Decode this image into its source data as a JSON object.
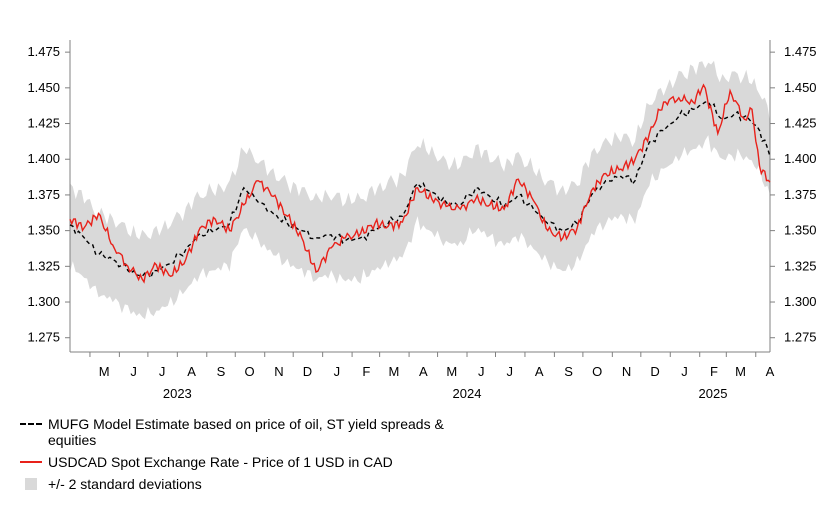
{
  "chart_data": {
    "type": "line",
    "title": "",
    "xlabel": "",
    "ylabel": "",
    "ylim": [
      1.265,
      1.48
    ],
    "y_ticks": [
      "1.475",
      "1.450",
      "1.425",
      "1.400",
      "1.375",
      "1.350",
      "1.325",
      "1.300",
      "1.275"
    ],
    "y_axes": [
      "left",
      "right"
    ],
    "x_range": [
      "2023-04-10",
      "2025-04-16"
    ],
    "month_labels": [
      {
        "label": "M",
        "date": "2023-05-01"
      },
      {
        "label": "J",
        "date": "2023-06-01"
      },
      {
        "label": "J",
        "date": "2023-07-01"
      },
      {
        "label": "A",
        "date": "2023-08-01"
      },
      {
        "label": "S",
        "date": "2023-09-01"
      },
      {
        "label": "O",
        "date": "2023-10-01"
      },
      {
        "label": "N",
        "date": "2023-11-01"
      },
      {
        "label": "D",
        "date": "2023-12-01"
      },
      {
        "label": "J",
        "date": "2024-01-01"
      },
      {
        "label": "F",
        "date": "2024-02-01"
      },
      {
        "label": "M",
        "date": "2024-03-01"
      },
      {
        "label": "A",
        "date": "2024-04-01"
      },
      {
        "label": "M",
        "date": "2024-05-01"
      },
      {
        "label": "J",
        "date": "2024-06-01"
      },
      {
        "label": "J",
        "date": "2024-07-01"
      },
      {
        "label": "A",
        "date": "2024-08-01"
      },
      {
        "label": "S",
        "date": "2024-09-01"
      },
      {
        "label": "O",
        "date": "2024-10-01"
      },
      {
        "label": "N",
        "date": "2024-11-01"
      },
      {
        "label": "D",
        "date": "2024-12-01"
      },
      {
        "label": "J",
        "date": "2025-01-01"
      },
      {
        "label": "F",
        "date": "2025-02-01"
      },
      {
        "label": "M",
        "date": "2025-03-01"
      },
      {
        "label": "A",
        "date": "2025-04-01"
      }
    ],
    "year_labels": [
      {
        "label": "2023",
        "date": "2023-08-01"
      },
      {
        "label": "2024",
        "date": "2024-06-01"
      },
      {
        "label": "2025",
        "date": "2025-02-15"
      }
    ],
    "grid": false,
    "legend_position": "bottom-left",
    "band_halfwidth": 0.028,
    "series": [
      {
        "name": "MUFG Model Estimate based on price of oil, ST yield spreads & equities",
        "style": "dashed",
        "color": "#000000",
        "points": [
          [
            "2023-04-10",
            1.354
          ],
          [
            "2023-04-25",
            1.345
          ],
          [
            "2023-05-10",
            1.333
          ],
          [
            "2023-05-25",
            1.33
          ],
          [
            "2023-06-10",
            1.322
          ],
          [
            "2023-06-25",
            1.318
          ],
          [
            "2023-07-10",
            1.322
          ],
          [
            "2023-07-25",
            1.327
          ],
          [
            "2023-08-10",
            1.337
          ],
          [
            "2023-08-25",
            1.348
          ],
          [
            "2023-09-10",
            1.35
          ],
          [
            "2023-09-25",
            1.355
          ],
          [
            "2023-10-10",
            1.38
          ],
          [
            "2023-10-25",
            1.37
          ],
          [
            "2023-11-10",
            1.362
          ],
          [
            "2023-11-25",
            1.355
          ],
          [
            "2023-12-10",
            1.35
          ],
          [
            "2023-12-25",
            1.345
          ],
          [
            "2024-01-10",
            1.347
          ],
          [
            "2024-01-25",
            1.343
          ],
          [
            "2024-02-10",
            1.345
          ],
          [
            "2024-02-25",
            1.35
          ],
          [
            "2024-03-10",
            1.355
          ],
          [
            "2024-03-25",
            1.36
          ],
          [
            "2024-04-10",
            1.383
          ],
          [
            "2024-04-25",
            1.377
          ],
          [
            "2024-05-10",
            1.37
          ],
          [
            "2024-05-25",
            1.368
          ],
          [
            "2024-06-10",
            1.38
          ],
          [
            "2024-06-25",
            1.374
          ],
          [
            "2024-07-10",
            1.367
          ],
          [
            "2024-07-25",
            1.375
          ],
          [
            "2024-08-10",
            1.365
          ],
          [
            "2024-08-25",
            1.355
          ],
          [
            "2024-09-10",
            1.35
          ],
          [
            "2024-09-25",
            1.355
          ],
          [
            "2024-10-10",
            1.375
          ],
          [
            "2024-10-25",
            1.385
          ],
          [
            "2024-11-10",
            1.388
          ],
          [
            "2024-11-25",
            1.385
          ],
          [
            "2024-12-10",
            1.412
          ],
          [
            "2024-12-25",
            1.42
          ],
          [
            "2025-01-10",
            1.43
          ],
          [
            "2025-01-25",
            1.435
          ],
          [
            "2025-02-10",
            1.44
          ],
          [
            "2025-02-25",
            1.428
          ],
          [
            "2025-03-10",
            1.432
          ],
          [
            "2025-03-25",
            1.428
          ],
          [
            "2025-04-05",
            1.42
          ],
          [
            "2025-04-16",
            1.402
          ]
        ]
      },
      {
        "name": "USDCAD Spot Exchange Rate - Price of 1 USD in CAD",
        "style": "solid",
        "color": "#e8211a",
        "points": [
          [
            "2023-04-10",
            1.358
          ],
          [
            "2023-04-25",
            1.352
          ],
          [
            "2023-05-10",
            1.362
          ],
          [
            "2023-05-25",
            1.34
          ],
          [
            "2023-06-10",
            1.325
          ],
          [
            "2023-06-25",
            1.316
          ],
          [
            "2023-07-10",
            1.326
          ],
          [
            "2023-07-25",
            1.318
          ],
          [
            "2023-08-10",
            1.33
          ],
          [
            "2023-08-25",
            1.352
          ],
          [
            "2023-09-10",
            1.358
          ],
          [
            "2023-09-25",
            1.35
          ],
          [
            "2023-10-10",
            1.368
          ],
          [
            "2023-10-25",
            1.385
          ],
          [
            "2023-11-10",
            1.374
          ],
          [
            "2023-11-25",
            1.36
          ],
          [
            "2023-12-10",
            1.345
          ],
          [
            "2023-12-25",
            1.321
          ],
          [
            "2024-01-10",
            1.338
          ],
          [
            "2024-01-25",
            1.345
          ],
          [
            "2024-02-10",
            1.348
          ],
          [
            "2024-02-25",
            1.355
          ],
          [
            "2024-03-10",
            1.353
          ],
          [
            "2024-03-25",
            1.356
          ],
          [
            "2024-04-10",
            1.38
          ],
          [
            "2024-04-25",
            1.372
          ],
          [
            "2024-05-10",
            1.367
          ],
          [
            "2024-05-25",
            1.365
          ],
          [
            "2024-06-10",
            1.372
          ],
          [
            "2024-06-25",
            1.368
          ],
          [
            "2024-07-10",
            1.365
          ],
          [
            "2024-07-25",
            1.386
          ],
          [
            "2024-08-10",
            1.371
          ],
          [
            "2024-08-25",
            1.35
          ],
          [
            "2024-09-10",
            1.345
          ],
          [
            "2024-09-25",
            1.352
          ],
          [
            "2024-10-10",
            1.378
          ],
          [
            "2024-10-25",
            1.39
          ],
          [
            "2024-11-10",
            1.393
          ],
          [
            "2024-11-25",
            1.4
          ],
          [
            "2024-12-10",
            1.418
          ],
          [
            "2024-12-25",
            1.44
          ],
          [
            "2025-01-10",
            1.443
          ],
          [
            "2025-01-25",
            1.44
          ],
          [
            "2025-02-05",
            1.452
          ],
          [
            "2025-02-20",
            1.418
          ],
          [
            "2025-03-05",
            1.448
          ],
          [
            "2025-03-20",
            1.428
          ],
          [
            "2025-03-28",
            1.435
          ],
          [
            "2025-04-05",
            1.395
          ],
          [
            "2025-04-16",
            1.384
          ]
        ]
      },
      {
        "name": "+/- 2 standard deviations",
        "style": "band",
        "color": "#d9d9d9"
      }
    ]
  }
}
